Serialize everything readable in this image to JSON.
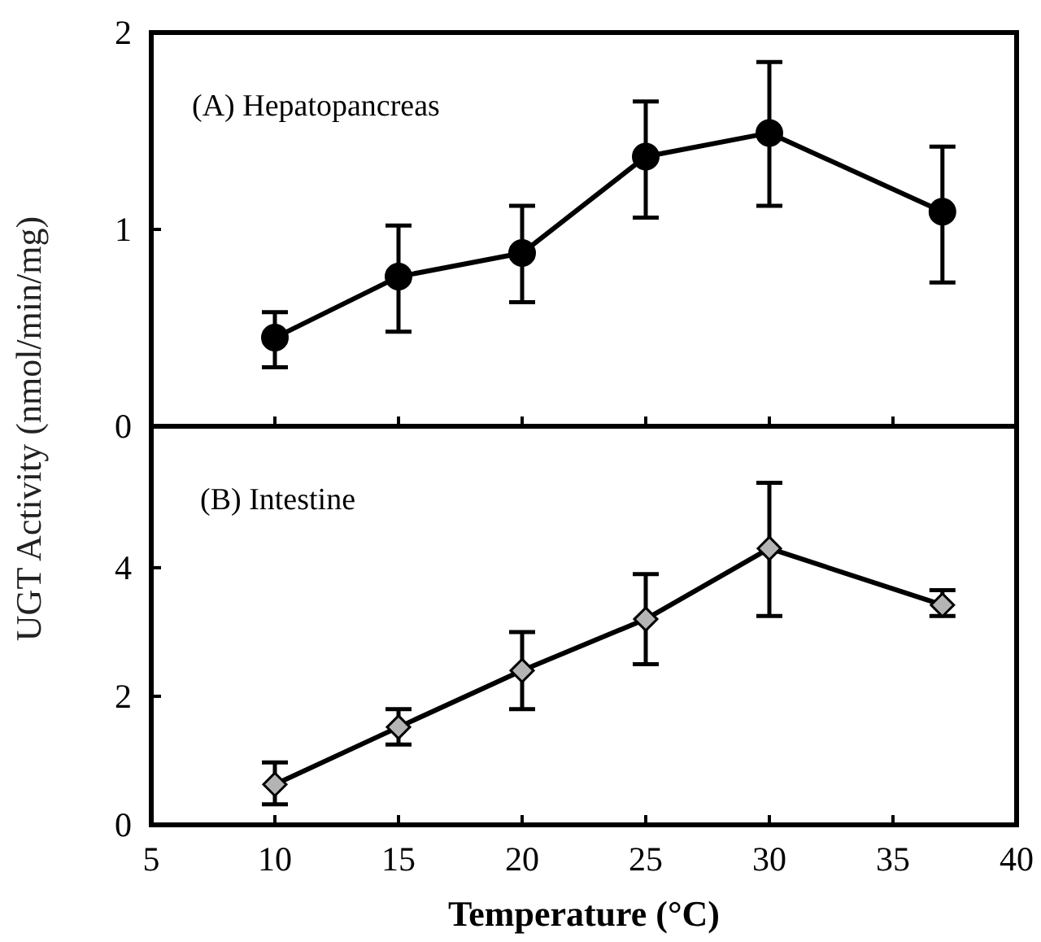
{
  "chart_data": [
    {
      "type": "line",
      "annotations": [
        "(A) Hepatopancreas"
      ],
      "ylabel": "UGT Activity (nmol/min/mg)",
      "x": [
        10,
        15,
        20,
        25,
        30,
        37
      ],
      "xlim": [
        5,
        40
      ],
      "xticks": [
        5,
        10,
        15,
        20,
        25,
        30,
        35,
        40
      ],
      "ylim": [
        0,
        2
      ],
      "yticks": [
        0,
        1,
        2
      ],
      "tick_labels": "y",
      "marker": "circle",
      "line_style": "solid",
      "series": [
        {
          "color": "#000000",
          "values": [
            0.45,
            0.76,
            0.88,
            1.37,
            1.49,
            1.09
          ],
          "errors": [
            [
              0.3,
              0.58
            ],
            [
              0.48,
              1.02
            ],
            [
              0.63,
              1.12
            ],
            [
              1.06,
              1.65
            ],
            [
              1.12,
              1.85
            ],
            [
              0.73,
              1.42
            ]
          ]
        }
      ]
    },
    {
      "type": "line",
      "annotations": [
        "(B) Intestine"
      ],
      "xlabel": "Temperature (°C)",
      "x": [
        10,
        15,
        20,
        25,
        30,
        37
      ],
      "xlim": [
        5,
        40
      ],
      "xticks": [
        5,
        10,
        15,
        20,
        25,
        30,
        35,
        40
      ],
      "ylim": [
        0,
        6.2
      ],
      "yticks": [
        0,
        2,
        4
      ],
      "marker": "diamond",
      "line_style": "solid",
      "series": [
        {
          "color": "#b4b4b4",
          "values": [
            0.63,
            1.52,
            2.4,
            3.2,
            4.3,
            3.42
          ],
          "errors": [
            [
              0.32,
              0.97
            ],
            [
              1.25,
              1.8
            ],
            [
              1.8,
              3.0
            ],
            [
              2.5,
              3.9
            ],
            [
              3.25,
              5.32
            ],
            [
              3.25,
              3.65
            ]
          ]
        }
      ]
    }
  ]
}
